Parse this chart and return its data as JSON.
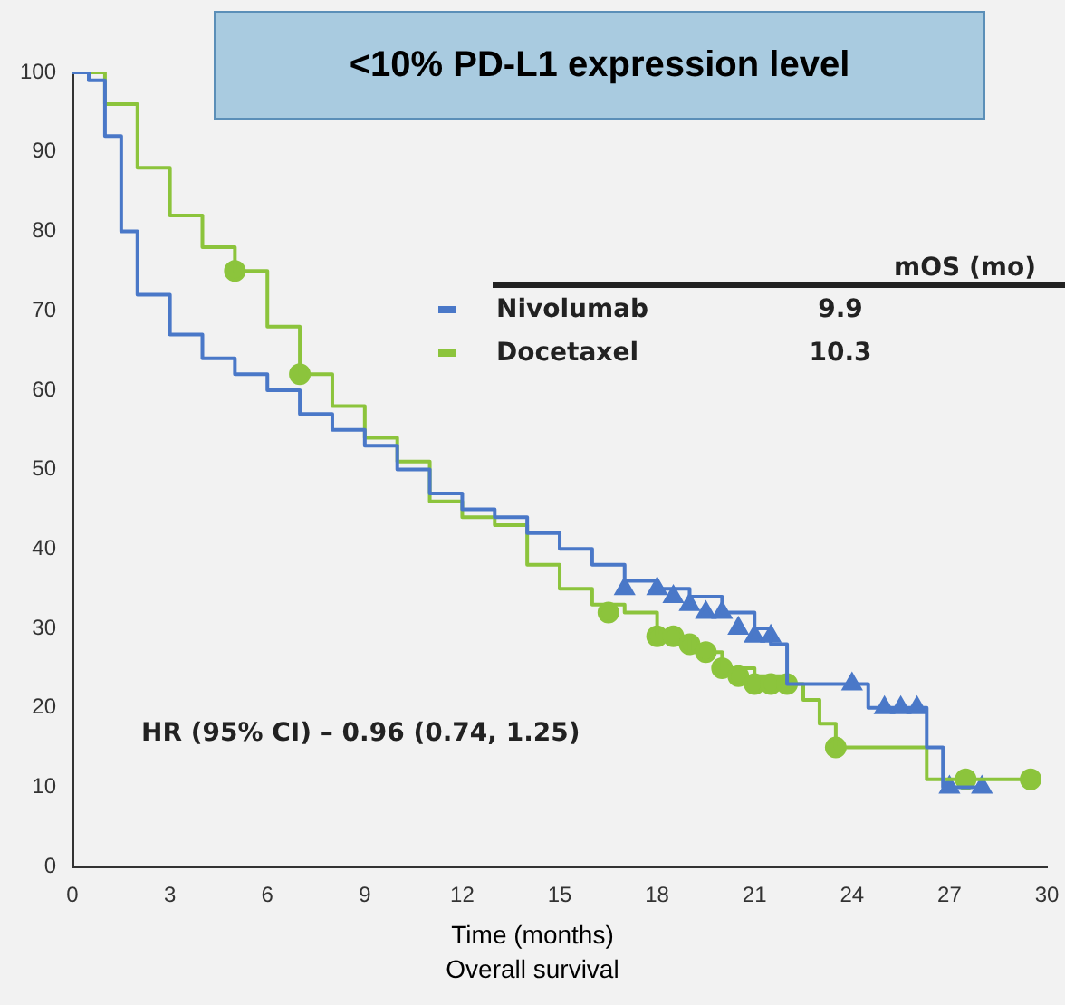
{
  "chart_data": {
    "type": "step",
    "title": "<10% PD-L1 expression level",
    "xlabel": "Time (months)",
    "xlim": [
      0,
      30
    ],
    "xticks": [
      0,
      3,
      6,
      9,
      12,
      15,
      18,
      21,
      24,
      27,
      30
    ],
    "ylim": [
      0,
      100
    ],
    "yticks": [
      0,
      10,
      20,
      30,
      40,
      50,
      60,
      70,
      80,
      90,
      100
    ],
    "grid": false,
    "legend": "top right",
    "legend_title": "mOS (mo)",
    "marker": "none",
    "line_style": "solid",
    "annotations": [
      "9.9",
      "10.3",
      "HR (95% CI) – 0.96 (0.74, 1.25)",
      "Overall survival"
    ],
    "series": [
      {
        "name": "Nivolumab",
        "color": "#4a78c8",
        "x": [
          0,
          0.5,
          1,
          1.5,
          2,
          3,
          4,
          5,
          6,
          7,
          8,
          9,
          10,
          11,
          12,
          13,
          14,
          15,
          16,
          17,
          18,
          19,
          20,
          21,
          21.5,
          22,
          24.5,
          26.3,
          26.8,
          28
        ],
        "values": [
          100,
          99,
          92,
          80,
          72,
          67,
          64,
          62,
          60,
          57,
          55,
          53,
          50,
          47,
          45,
          44,
          42,
          40,
          38,
          36,
          35,
          34,
          32,
          30,
          28,
          23,
          20,
          15,
          10,
          10
        ]
      },
      {
        "name": "Docetaxel",
        "color": "#8cc43c",
        "x": [
          0,
          1,
          2,
          3,
          4,
          5,
          6,
          7,
          8,
          9,
          10,
          11,
          12,
          13,
          14,
          15,
          16,
          17,
          18,
          19,
          20,
          21,
          22,
          22.5,
          23,
          23.5,
          26.3,
          29.7
        ],
        "values": [
          100,
          96,
          88,
          82,
          78,
          75,
          68,
          62,
          58,
          54,
          51,
          46,
          44,
          43,
          38,
          35,
          33,
          32,
          29,
          27,
          25,
          24,
          23,
          21,
          18,
          15,
          11,
          11
        ]
      },
      {
        "type": "scatter",
        "marker": "triangle",
        "color": "#4a78c8",
        "x": [
          17,
          18,
          18.5,
          19,
          19.5,
          20,
          20.5,
          21,
          21.5,
          24,
          25,
          25.5,
          26,
          27,
          28
        ],
        "values": [
          35,
          35,
          34,
          33,
          32,
          32,
          30,
          29,
          29,
          23,
          20,
          20,
          20,
          10,
          10
        ]
      },
      {
        "type": "scatter",
        "marker": "circle",
        "color": "#8cc43c",
        "x": [
          5,
          7,
          16.5,
          18,
          18.5,
          19,
          19.5,
          20,
          20.5,
          21,
          21.5,
          22,
          23.5,
          27.5,
          29.5
        ],
        "values": [
          75,
          62,
          32,
          29,
          29,
          28,
          27,
          25,
          24,
          23,
          23,
          23,
          15,
          11,
          11
        ]
      }
    ]
  }
}
